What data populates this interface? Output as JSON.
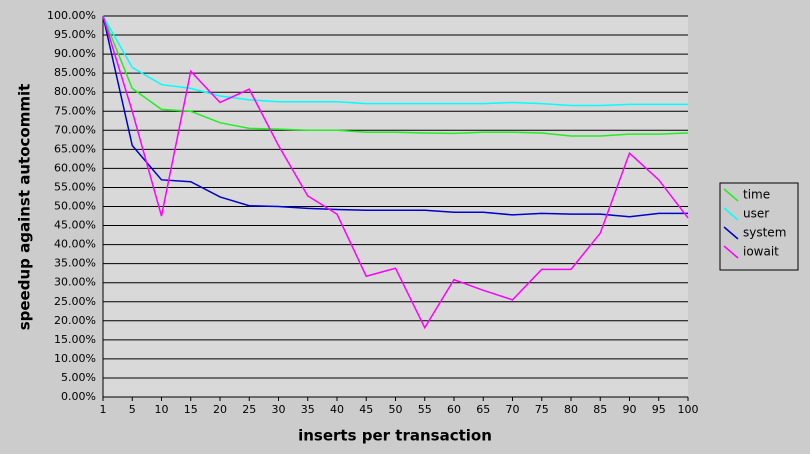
{
  "chart_data": {
    "type": "line",
    "xlabel": "inserts per transaction",
    "ylabel": "speedup against autocommit",
    "categories": [
      "1",
      "5",
      "10",
      "15",
      "20",
      "25",
      "30",
      "35",
      "40",
      "45",
      "50",
      "55",
      "60",
      "65",
      "70",
      "75",
      "80",
      "85",
      "90",
      "95",
      "100"
    ],
    "series": [
      {
        "name": "time",
        "color": "#22ee22",
        "values": [
          100,
          81,
          75.5,
          75,
          72,
          70.5,
          70.3,
          70,
          70,
          69.5,
          69.5,
          69.3,
          69.2,
          69.5,
          69.5,
          69.3,
          68.5,
          68.5,
          69,
          69,
          69.3
        ]
      },
      {
        "name": "user",
        "color": "#00ffff",
        "values": [
          100,
          86.5,
          82,
          81,
          79,
          78,
          77.5,
          77.5,
          77.5,
          77,
          77,
          77,
          77,
          77,
          77.3,
          77,
          76.5,
          76.5,
          76.8,
          76.8,
          76.8
        ]
      },
      {
        "name": "system",
        "color": "#0000cc",
        "values": [
          100,
          66,
          57,
          56.5,
          52.5,
          50.2,
          50,
          49.5,
          49.2,
          49,
          49,
          49,
          48.5,
          48.5,
          47.8,
          48.2,
          48,
          48,
          47.3,
          48.2,
          48.2
        ]
      },
      {
        "name": "iowait",
        "color": "#ff00ff",
        "values": [
          100,
          75,
          47.5,
          85.5,
          77.3,
          80.8,
          66,
          52.8,
          48,
          31.7,
          33.8,
          18.2,
          30.8,
          28,
          25.5,
          33.5,
          33.5,
          43,
          64,
          57,
          47
        ]
      }
    ],
    "ylim": [
      0,
      100
    ],
    "yticks": [
      {
        "value": 0,
        "label": "0.00%"
      },
      {
        "value": 5,
        "label": "5.00%"
      },
      {
        "value": 10,
        "label": "10.00%"
      },
      {
        "value": 15,
        "label": "15.00%"
      },
      {
        "value": 20,
        "label": "20.00%"
      },
      {
        "value": 25,
        "label": "25.00%"
      },
      {
        "value": 30,
        "label": "30.00%"
      },
      {
        "value": 35,
        "label": "35.00%"
      },
      {
        "value": 40,
        "label": "40.00%"
      },
      {
        "value": 45,
        "label": "45.00%"
      },
      {
        "value": 50,
        "label": "50.00%"
      },
      {
        "value": 55,
        "label": "55.00%"
      },
      {
        "value": 60,
        "label": "60.00%"
      },
      {
        "value": 65,
        "label": "65.00%"
      },
      {
        "value": 70,
        "label": "70.00%"
      },
      {
        "value": 75,
        "label": "75.00%"
      },
      {
        "value": 80,
        "label": "80.00%"
      },
      {
        "value": 85,
        "label": "85.00%"
      },
      {
        "value": 90,
        "label": "90.00%"
      },
      {
        "value": 95,
        "label": "95.00%"
      },
      {
        "value": 100,
        "label": "100.00%"
      }
    ],
    "grid": true,
    "legend": "right"
  }
}
